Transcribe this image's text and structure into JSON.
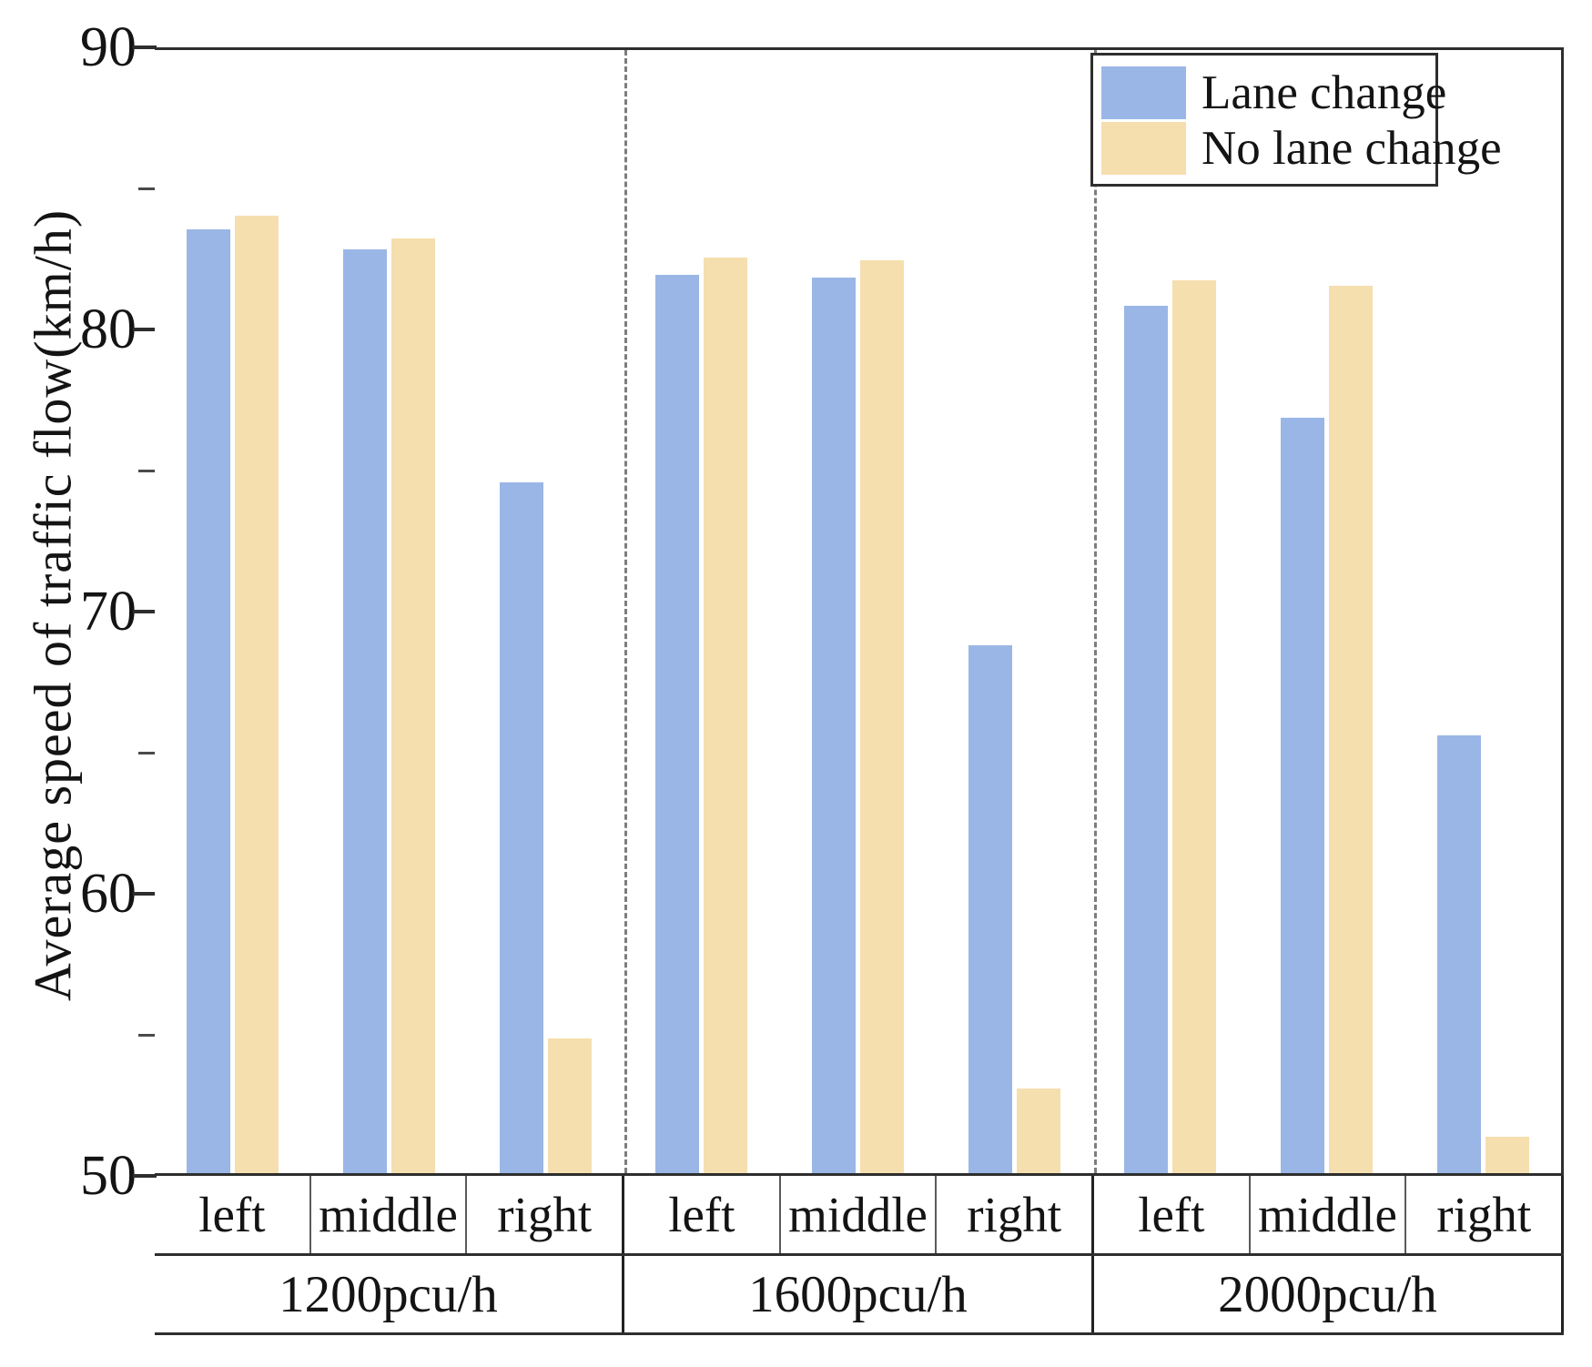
{
  "chart_data": {
    "type": "bar",
    "title": "",
    "xlabel": "",
    "ylabel": "Average speed of traffic flow(km/h)",
    "ylim": [
      50,
      90
    ],
    "yticks": [
      90,
      80,
      70,
      60,
      50
    ],
    "ytick_labels": [
      "90",
      "80",
      "70",
      "60",
      "50"
    ],
    "minor_yticks": [
      85,
      75,
      65,
      55
    ],
    "grid": false,
    "legend_position": "top-right",
    "colors": {
      "lane_change": "#9ab6e6",
      "no_lane_change": "#f5dfae",
      "axis": "#2e2e2e",
      "separator": "#7d7d7d"
    },
    "legend": {
      "entries": [
        {
          "label": "Lane change",
          "key": "lane_change"
        },
        {
          "label": "No lane change",
          "key": "no_lane_change"
        }
      ]
    },
    "groups": [
      {
        "label": "1200pcu/h",
        "lanes": [
          {
            "label": "left",
            "lane_change": 83.6,
            "no_lane_change": 84.1
          },
          {
            "label": "middle",
            "lane_change": 82.9,
            "no_lane_change": 83.3
          },
          {
            "label": "right",
            "lane_change": 74.6,
            "no_lane_change": 54.8
          }
        ]
      },
      {
        "label": "1600pcu/h",
        "lanes": [
          {
            "label": "left",
            "lane_change": 82.0,
            "no_lane_change": 82.6
          },
          {
            "label": "middle",
            "lane_change": 81.9,
            "no_lane_change": 82.5
          },
          {
            "label": "right",
            "lane_change": 68.8,
            "no_lane_change": 53.0
          }
        ]
      },
      {
        "label": "2000pcu/h",
        "lanes": [
          {
            "label": "left",
            "lane_change": 80.9,
            "no_lane_change": 81.8
          },
          {
            "label": "middle",
            "lane_change": 76.9,
            "no_lane_change": 81.6
          },
          {
            "label": "right",
            "lane_change": 65.6,
            "no_lane_change": 51.3
          }
        ]
      }
    ],
    "series": [
      {
        "name": "Lane change",
        "values": [
          83.6,
          82.9,
          74.6,
          82.0,
          81.9,
          68.8,
          80.9,
          76.9,
          65.6
        ]
      },
      {
        "name": "No lane change",
        "values": [
          84.1,
          83.3,
          54.8,
          82.6,
          82.5,
          53.0,
          81.8,
          81.6,
          51.3
        ]
      }
    ],
    "categories": [
      "1200pcu/h left",
      "1200pcu/h middle",
      "1200pcu/h right",
      "1600pcu/h left",
      "1600pcu/h middle",
      "1600pcu/h right",
      "2000pcu/h left",
      "2000pcu/h middle",
      "2000pcu/h right"
    ]
  }
}
